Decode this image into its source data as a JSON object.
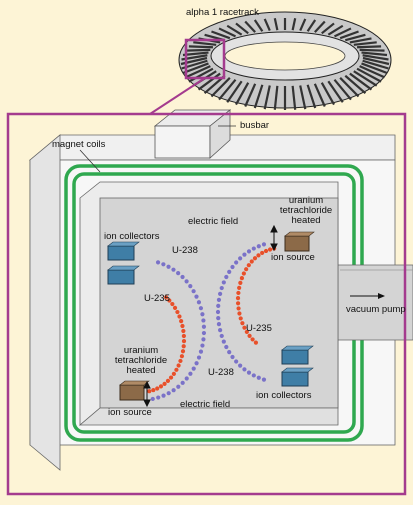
{
  "labels": {
    "racetrack": "alpha 1 racetrack",
    "busbar": "busbar",
    "magnet_coils": "magnet coils",
    "vacuum_pump": "vacuum pump",
    "left": {
      "collectors": "ion collectors",
      "u238": "U-238",
      "u235": "U-235",
      "source_line1": "uranium",
      "source_line2": "tetrachloride",
      "source_line3": "heated",
      "ion_source": "ion source",
      "electric_field": "electric field"
    },
    "right": {
      "electric_field": "electric field",
      "source_line1": "uranium",
      "source_line2": "tetrachloride",
      "source_line3": "heated",
      "ion_source": "ion source",
      "u235": "U-235",
      "u238": "U-238",
      "collectors": "ion collectors"
    }
  },
  "colors": {
    "background": "#fdf4d6",
    "frame": "#a43b8e",
    "coil": "#2fa84f",
    "chamber": "#d4d4d4",
    "chamber_wall": "#ececec",
    "u238_beam": "#7a72c8",
    "u235_beam": "#e8502a",
    "collector": "#3f7ea6",
    "source": "#8c6a48"
  }
}
